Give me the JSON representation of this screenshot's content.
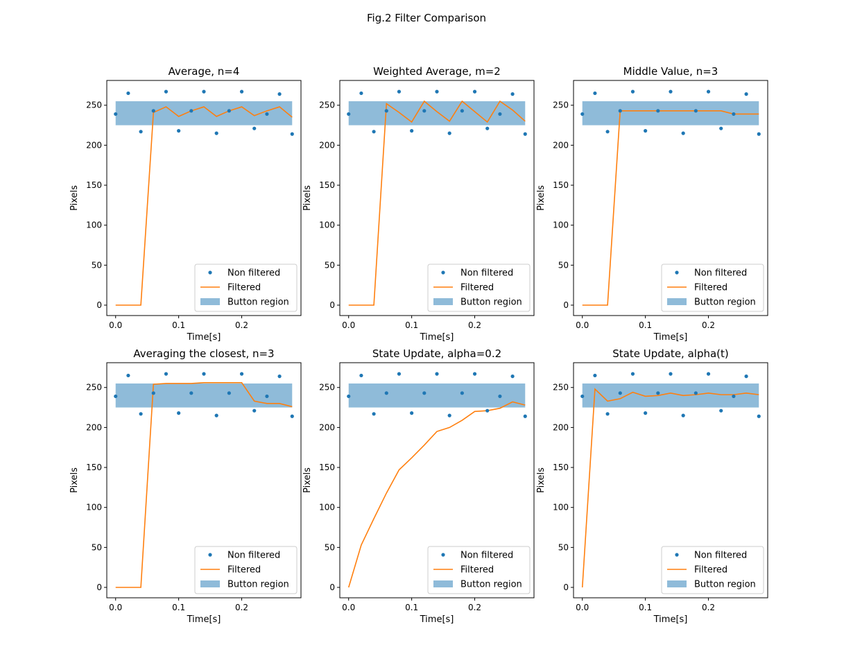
{
  "figure": {
    "suptitle": "Fig.2 Filter Comparison"
  },
  "colors": {
    "raw": "#1f77b4",
    "filtered": "#ff7f0e",
    "region": "#1f77b4"
  },
  "chart_data": [
    {
      "type": "line",
      "title": "Average, n=4",
      "xlabel": "Time[s]",
      "ylabel": "Pixels",
      "xlim": [
        -0.014,
        0.294
      ],
      "ylim": [
        -13,
        281
      ],
      "xticks": [
        0.0,
        0.1,
        0.2
      ],
      "xtick_labels": [
        "0.0",
        "0.1",
        "0.2"
      ],
      "yticks": [
        0,
        50,
        100,
        150,
        200,
        250
      ],
      "ytick_labels": [
        "0",
        "50",
        "100",
        "150",
        "200",
        "250"
      ],
      "button_region": {
        "x0": 0.0,
        "x1": 0.28,
        "y0": 225,
        "y1": 255
      },
      "legend": [
        "Non filtered",
        "Filtered",
        "Button region"
      ],
      "legend_loc": "lower right",
      "series": [
        {
          "name": "Non filtered",
          "style": "points",
          "x": [
            0,
            0.02,
            0.04,
            0.06,
            0.08,
            0.1,
            0.12,
            0.14,
            0.16,
            0.18,
            0.2,
            0.22,
            0.24,
            0.26,
            0.28
          ],
          "y": [
            239,
            265,
            217,
            243,
            267,
            218,
            243,
            267,
            215,
            243,
            267,
            221,
            239,
            264,
            214
          ]
        },
        {
          "name": "Filtered",
          "style": "line",
          "x": [
            0,
            0.02,
            0.04,
            0.06,
            0.08,
            0.1,
            0.12,
            0.14,
            0.16,
            0.18,
            0.2,
            0.22,
            0.24,
            0.26,
            0.28
          ],
          "y": [
            0,
            0,
            0,
            241,
            248,
            236,
            243,
            248,
            236,
            243,
            248,
            237,
            243,
            248,
            235
          ]
        }
      ]
    },
    {
      "type": "line",
      "title": "Weighted Average, m=2",
      "xlabel": "Time[s]",
      "ylabel": "Pixels",
      "xlim": [
        -0.014,
        0.294
      ],
      "ylim": [
        -13,
        281
      ],
      "xticks": [
        0.0,
        0.1,
        0.2
      ],
      "xtick_labels": [
        "0.0",
        "0.1",
        "0.2"
      ],
      "yticks": [
        0,
        50,
        100,
        150,
        200,
        250
      ],
      "ytick_labels": [
        "0",
        "50",
        "100",
        "150",
        "200",
        "250"
      ],
      "button_region": {
        "x0": 0.0,
        "x1": 0.28,
        "y0": 225,
        "y1": 255
      },
      "legend": [
        "Non filtered",
        "Filtered",
        "Button region"
      ],
      "legend_loc": "lower right",
      "series": [
        {
          "name": "Non filtered",
          "style": "points",
          "x": [
            0,
            0.02,
            0.04,
            0.06,
            0.08,
            0.1,
            0.12,
            0.14,
            0.16,
            0.18,
            0.2,
            0.22,
            0.24,
            0.26,
            0.28
          ],
          "y": [
            239,
            265,
            217,
            243,
            267,
            218,
            243,
            267,
            215,
            243,
            267,
            221,
            239,
            264,
            214
          ]
        },
        {
          "name": "Filtered",
          "style": "line",
          "x": [
            0,
            0.02,
            0.04,
            0.06,
            0.08,
            0.1,
            0.12,
            0.14,
            0.16,
            0.18,
            0.2,
            0.22,
            0.24,
            0.26,
            0.28
          ],
          "y": [
            0,
            0,
            0,
            252,
            241,
            229,
            255,
            242,
            230,
            255,
            242,
            229,
            255,
            244,
            230
          ]
        }
      ]
    },
    {
      "type": "line",
      "title": "Middle Value, n=3",
      "xlabel": "Time[s]",
      "ylabel": "Pixels",
      "xlim": [
        -0.014,
        0.294
      ],
      "ylim": [
        -13,
        281
      ],
      "xticks": [
        0.0,
        0.1,
        0.2
      ],
      "xtick_labels": [
        "0.0",
        "0.1",
        "0.2"
      ],
      "yticks": [
        0,
        50,
        100,
        150,
        200,
        250
      ],
      "ytick_labels": [
        "0",
        "50",
        "100",
        "150",
        "200",
        "250"
      ],
      "button_region": {
        "x0": 0.0,
        "x1": 0.28,
        "y0": 225,
        "y1": 255
      },
      "legend": [
        "Non filtered",
        "Filtered",
        "Button region"
      ],
      "legend_loc": "lower right",
      "series": [
        {
          "name": "Non filtered",
          "style": "points",
          "x": [
            0,
            0.02,
            0.04,
            0.06,
            0.08,
            0.1,
            0.12,
            0.14,
            0.16,
            0.18,
            0.2,
            0.22,
            0.24,
            0.26,
            0.28
          ],
          "y": [
            239,
            265,
            217,
            243,
            267,
            218,
            243,
            267,
            215,
            243,
            267,
            221,
            239,
            264,
            214
          ]
        },
        {
          "name": "Filtered",
          "style": "line",
          "x": [
            0,
            0.02,
            0.04,
            0.06,
            0.08,
            0.1,
            0.12,
            0.14,
            0.16,
            0.18,
            0.2,
            0.22,
            0.24,
            0.26,
            0.28
          ],
          "y": [
            0,
            0,
            0,
            243,
            243,
            243,
            243,
            243,
            243,
            243,
            243,
            243,
            239,
            239,
            239
          ]
        }
      ]
    },
    {
      "type": "line",
      "title": "Averaging the closest, n=3",
      "xlabel": "Time[s]",
      "ylabel": "Pixels",
      "xlim": [
        -0.014,
        0.294
      ],
      "ylim": [
        -13,
        281
      ],
      "xticks": [
        0.0,
        0.1,
        0.2
      ],
      "xtick_labels": [
        "0.0",
        "0.1",
        "0.2"
      ],
      "yticks": [
        0,
        50,
        100,
        150,
        200,
        250
      ],
      "ytick_labels": [
        "0",
        "50",
        "100",
        "150",
        "200",
        "250"
      ],
      "button_region": {
        "x0": 0.0,
        "x1": 0.28,
        "y0": 225,
        "y1": 255
      },
      "legend": [
        "Non filtered",
        "Filtered",
        "Button region"
      ],
      "legend_loc": "lower right",
      "series": [
        {
          "name": "Non filtered",
          "style": "points",
          "x": [
            0,
            0.02,
            0.04,
            0.06,
            0.08,
            0.1,
            0.12,
            0.14,
            0.16,
            0.18,
            0.2,
            0.22,
            0.24,
            0.26,
            0.28
          ],
          "y": [
            239,
            265,
            217,
            243,
            267,
            218,
            243,
            267,
            215,
            243,
            267,
            221,
            239,
            264,
            214
          ]
        },
        {
          "name": "Filtered",
          "style": "line",
          "x": [
            0,
            0.02,
            0.04,
            0.06,
            0.08,
            0.1,
            0.12,
            0.14,
            0.16,
            0.18,
            0.2,
            0.22,
            0.24,
            0.26,
            0.28
          ],
          "y": [
            0,
            0,
            0,
            254,
            255,
            255,
            255,
            256,
            256,
            256,
            256,
            233,
            230,
            230,
            226
          ]
        }
      ]
    },
    {
      "type": "line",
      "title": "State Update, alpha=0.2",
      "xlabel": "Time[s]",
      "ylabel": "Pixels",
      "xlim": [
        -0.014,
        0.294
      ],
      "ylim": [
        -13,
        281
      ],
      "xticks": [
        0.0,
        0.1,
        0.2
      ],
      "xtick_labels": [
        "0.0",
        "0.1",
        "0.2"
      ],
      "yticks": [
        0,
        50,
        100,
        150,
        200,
        250
      ],
      "ytick_labels": [
        "0",
        "50",
        "100",
        "150",
        "200",
        "250"
      ],
      "button_region": {
        "x0": 0.0,
        "x1": 0.28,
        "y0": 225,
        "y1": 255
      },
      "legend": [
        "Non filtered",
        "Filtered",
        "Button region"
      ],
      "legend_loc": "lower right",
      "series": [
        {
          "name": "Non filtered",
          "style": "points",
          "x": [
            0,
            0.02,
            0.04,
            0.06,
            0.08,
            0.1,
            0.12,
            0.14,
            0.16,
            0.18,
            0.2,
            0.22,
            0.24,
            0.26,
            0.28
          ],
          "y": [
            239,
            265,
            217,
            243,
            267,
            218,
            243,
            267,
            215,
            243,
            267,
            221,
            239,
            264,
            214
          ]
        },
        {
          "name": "Filtered",
          "style": "line",
          "x": [
            0,
            0.02,
            0.04,
            0.06,
            0.08,
            0.1,
            0.12,
            0.14,
            0.16,
            0.18,
            0.2,
            0.22,
            0.24,
            0.26,
            0.28
          ],
          "y": [
            0,
            53,
            86,
            118,
            147,
            162,
            178,
            195,
            200,
            209,
            220,
            221,
            224,
            232,
            228
          ]
        }
      ]
    },
    {
      "type": "line",
      "title": "State Update, alpha(t)",
      "xlabel": "Time[s]",
      "ylabel": "Pixels",
      "xlim": [
        -0.014,
        0.294
      ],
      "ylim": [
        -13,
        281
      ],
      "xticks": [
        0.0,
        0.1,
        0.2
      ],
      "xtick_labels": [
        "0.0",
        "0.1",
        "0.2"
      ],
      "yticks": [
        0,
        50,
        100,
        150,
        200,
        250
      ],
      "ytick_labels": [
        "0",
        "50",
        "100",
        "150",
        "200",
        "250"
      ],
      "button_region": {
        "x0": 0.0,
        "x1": 0.28,
        "y0": 225,
        "y1": 255
      },
      "legend": [
        "Non filtered",
        "Filtered",
        "Button region"
      ],
      "legend_loc": "lower right",
      "series": [
        {
          "name": "Non filtered",
          "style": "points",
          "x": [
            0,
            0.02,
            0.04,
            0.06,
            0.08,
            0.1,
            0.12,
            0.14,
            0.16,
            0.18,
            0.2,
            0.22,
            0.24,
            0.26,
            0.28
          ],
          "y": [
            239,
            265,
            217,
            243,
            267,
            218,
            243,
            267,
            215,
            243,
            267,
            221,
            239,
            264,
            214
          ]
        },
        {
          "name": "Filtered",
          "style": "line",
          "x": [
            0,
            0.02,
            0.04,
            0.06,
            0.08,
            0.1,
            0.12,
            0.14,
            0.16,
            0.18,
            0.2,
            0.22,
            0.24,
            0.26,
            0.28
          ],
          "y": [
            0,
            248,
            233,
            236,
            244,
            239,
            240,
            243,
            240,
            241,
            243,
            241,
            241,
            243,
            241
          ]
        }
      ]
    }
  ]
}
